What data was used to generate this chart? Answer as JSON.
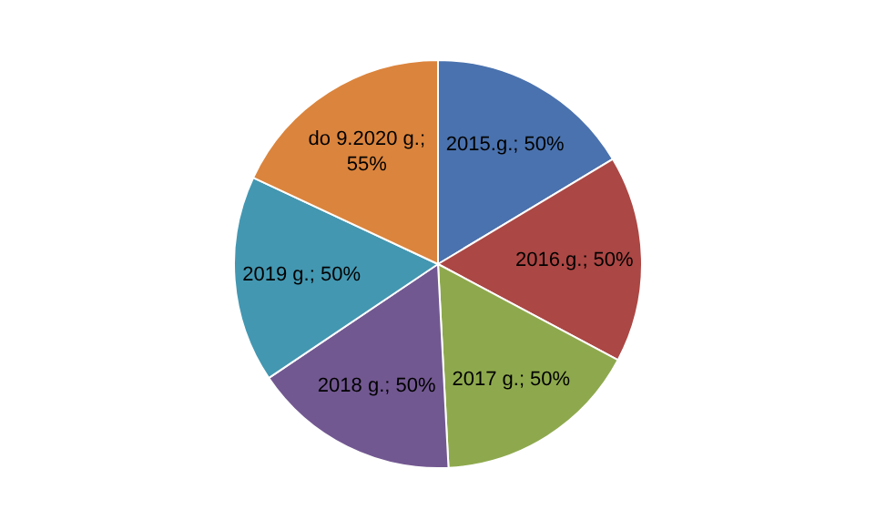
{
  "chart_data": {
    "type": "pie",
    "categories": [
      "2015.g.",
      "2016.g.",
      "2017 g.",
      "2018 g.",
      "2019 g.",
      "do 9.2020 g."
    ],
    "values": [
      50,
      50,
      50,
      50,
      50,
      55
    ],
    "value_labels": [
      "; 50%",
      "; 50%",
      "; 50%",
      "; 50%",
      "; 50%",
      ";\n55%"
    ],
    "colors": [
      "#4a72ae",
      "#ab4744",
      "#8ea94d",
      "#725891",
      "#4397b1",
      "#db843d"
    ],
    "legend": false
  }
}
